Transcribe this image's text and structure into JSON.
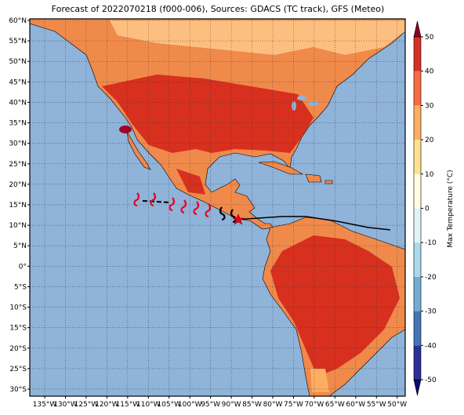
{
  "title": "Forecast of 2022070218 (f000-006), Sources: GDACS (TC track), GFS (Meteo)",
  "map": {
    "lat_ticks": [
      {
        "value": 60,
        "label": "60°N"
      },
      {
        "value": 55,
        "label": "55°N"
      },
      {
        "value": 50,
        "label": "50°N"
      },
      {
        "value": 45,
        "label": "45°N"
      },
      {
        "value": 40,
        "label": "40°N"
      },
      {
        "value": 35,
        "label": "35°N"
      },
      {
        "value": 30,
        "label": "30°N"
      },
      {
        "value": 25,
        "label": "25°N"
      },
      {
        "value": 20,
        "label": "20°N"
      },
      {
        "value": 15,
        "label": "15°N"
      },
      {
        "value": 10,
        "label": "10°N"
      },
      {
        "value": 5,
        "label": "5°N"
      },
      {
        "value": 0,
        "label": "0°"
      },
      {
        "value": -5,
        "label": "5°S"
      },
      {
        "value": -10,
        "label": "10°S"
      },
      {
        "value": -15,
        "label": "15°S"
      },
      {
        "value": -20,
        "label": "20°S"
      },
      {
        "value": -25,
        "label": "25°S"
      },
      {
        "value": -30,
        "label": "30°S"
      }
    ],
    "lon_ticks": [
      {
        "value": -135,
        "label": "135°W"
      },
      {
        "value": -130,
        "label": "130°W"
      },
      {
        "value": -125,
        "label": "125°W"
      },
      {
        "value": -120,
        "label": "120°W"
      },
      {
        "value": -115,
        "label": "115°W"
      },
      {
        "value": -110,
        "label": "110°W"
      },
      {
        "value": -105,
        "label": "105°W"
      },
      {
        "value": -100,
        "label": "100°W"
      },
      {
        "value": -95,
        "label": "95°W"
      },
      {
        "value": -90,
        "label": "90°W"
      },
      {
        "value": -85,
        "label": "85°W"
      },
      {
        "value": -80,
        "label": "80°W"
      },
      {
        "value": -75,
        "label": "75°W"
      },
      {
        "value": -70,
        "label": "70°W"
      },
      {
        "value": -65,
        "label": "65°W"
      },
      {
        "value": -60,
        "label": "60°W"
      },
      {
        "value": -55,
        "label": "55°W"
      },
      {
        "value": -50,
        "label": "50°W"
      }
    ]
  },
  "colorbar": {
    "label": "Max Temperature (°C)",
    "ticks": [
      -50,
      -40,
      -30,
      -20,
      -10,
      0,
      10,
      20,
      30,
      40,
      50
    ],
    "colors": [
      "#0b0b6e",
      "#2a2f9a",
      "#4575b4",
      "#74add1",
      "#abd9e9",
      "#e0f3f8",
      "#fffbe0",
      "#fee090",
      "#fdae61",
      "#f46d43",
      "#d73027",
      "#8b0020"
    ]
  }
}
